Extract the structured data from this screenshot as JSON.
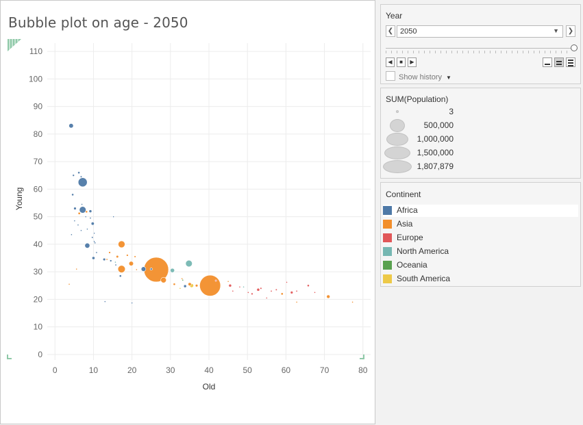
{
  "sheet": {
    "title": "Bubble plot on age - 2050"
  },
  "year_filter": {
    "title": "Year",
    "value": "2050",
    "show_history": "Show history",
    "prev_icon": "chevron-left-icon",
    "next_icon": "chevron-right-icon",
    "dropdown_icon": "caret-down-icon"
  },
  "size_legend": {
    "title": "SUM(Population)",
    "items": [
      {
        "label": "3",
        "value": 3
      },
      {
        "label": "500,000",
        "value": 500000
      },
      {
        "label": "1,000,000",
        "value": 1000000
      },
      {
        "label": "1,500,000",
        "value": 1500000
      },
      {
        "label": "1,807,879",
        "value": 1807879
      }
    ]
  },
  "color_legend": {
    "title": "Continent",
    "items": [
      {
        "label": "Africa",
        "color": "#4e79a7"
      },
      {
        "label": "Asia",
        "color": "#f28e2b"
      },
      {
        "label": "Europe",
        "color": "#e15759"
      },
      {
        "label": "North America",
        "color": "#76b7b2"
      },
      {
        "label": "Oceania",
        "color": "#59a14f"
      },
      {
        "label": "South America",
        "color": "#edc948"
      }
    ]
  },
  "chart_data": {
    "type": "scatter",
    "title": "Bubble plot on age - 2050",
    "xlabel": "Old",
    "ylabel": "Young",
    "xlim": [
      -2,
      82
    ],
    "ylim": [
      -2,
      113
    ],
    "xticks": [
      0,
      10,
      20,
      30,
      40,
      50,
      60,
      70,
      80
    ],
    "yticks": [
      0,
      10,
      20,
      30,
      40,
      50,
      60,
      70,
      80,
      90,
      100,
      110
    ],
    "grid": true,
    "series": [
      {
        "name": "Africa",
        "color": "#4e79a7",
        "points": [
          {
            "x": 4.2,
            "y": 83,
            "pop": 60000
          },
          {
            "x": 7.2,
            "y": 62.5,
            "pop": 240000
          },
          {
            "x": 4.8,
            "y": 65,
            "pop": 12000
          },
          {
            "x": 6.2,
            "y": 66,
            "pop": 14000
          },
          {
            "x": 6.8,
            "y": 64.5,
            "pop": 10000
          },
          {
            "x": 4.6,
            "y": 58,
            "pop": 14000
          },
          {
            "x": 7.2,
            "y": 52.5,
            "pop": 130000
          },
          {
            "x": 5.2,
            "y": 53,
            "pop": 20000
          },
          {
            "x": 9.2,
            "y": 52,
            "pop": 24000
          },
          {
            "x": 7.0,
            "y": 54.5,
            "pop": 5000
          },
          {
            "x": 5.1,
            "y": 48.5,
            "pop": 6000
          },
          {
            "x": 8.0,
            "y": 50,
            "pop": 4000
          },
          {
            "x": 9.2,
            "y": 49.5,
            "pop": 8000
          },
          {
            "x": 9.8,
            "y": 47.5,
            "pop": 28000
          },
          {
            "x": 6.0,
            "y": 47,
            "pop": 4000
          },
          {
            "x": 8.4,
            "y": 45.5,
            "pop": 5000
          },
          {
            "x": 6.8,
            "y": 45,
            "pop": 3000
          },
          {
            "x": 10.2,
            "y": 44,
            "pop": 4000
          },
          {
            "x": 9.7,
            "y": 42.5,
            "pop": 9000
          },
          {
            "x": 10.2,
            "y": 41,
            "pop": 7000
          },
          {
            "x": 8.4,
            "y": 39.5,
            "pop": 75000
          },
          {
            "x": 10.4,
            "y": 40.5,
            "pop": 8000
          },
          {
            "x": 10.8,
            "y": 37,
            "pop": 8000
          },
          {
            "x": 10.0,
            "y": 35,
            "pop": 25000
          },
          {
            "x": 12.8,
            "y": 34.5,
            "pop": 20000
          },
          {
            "x": 14.5,
            "y": 34,
            "pop": 12000
          },
          {
            "x": 15.8,
            "y": 32.5,
            "pop": 8000
          },
          {
            "x": 17.0,
            "y": 28.5,
            "pop": 14000
          },
          {
            "x": 23.0,
            "y": 31,
            "pop": 65000
          },
          {
            "x": 25.0,
            "y": 31,
            "pop": 14000
          },
          {
            "x": 33.8,
            "y": 24.8,
            "pop": 24000
          },
          {
            "x": 15.2,
            "y": 50,
            "pop": 2000
          },
          {
            "x": 4.3,
            "y": 43.5,
            "pop": 2000
          },
          {
            "x": 13.0,
            "y": 19.2,
            "pop": 1000
          },
          {
            "x": 20.0,
            "y": 18.7,
            "pop": 1000
          }
        ]
      },
      {
        "name": "Asia",
        "color": "#f28e2b",
        "points": [
          {
            "x": 26.3,
            "y": 30.8,
            "pop": 1807879
          },
          {
            "x": 40.3,
            "y": 25.0,
            "pop": 1300000
          },
          {
            "x": 17.3,
            "y": 40.0,
            "pop": 140000
          },
          {
            "x": 17.3,
            "y": 31.0,
            "pop": 160000
          },
          {
            "x": 19.8,
            "y": 33.0,
            "pop": 60000
          },
          {
            "x": 28.2,
            "y": 27.0,
            "pop": 90000
          },
          {
            "x": 6.3,
            "y": 51.2,
            "pop": 16000
          },
          {
            "x": 8.2,
            "y": 51.8,
            "pop": 14000
          },
          {
            "x": 14.2,
            "y": 37,
            "pop": 12000
          },
          {
            "x": 16.2,
            "y": 35.5,
            "pop": 18000
          },
          {
            "x": 18.8,
            "y": 36,
            "pop": 12000
          },
          {
            "x": 20.8,
            "y": 35.5,
            "pop": 10000
          },
          {
            "x": 13.5,
            "y": 34.5,
            "pop": 8000
          },
          {
            "x": 36.8,
            "y": 25,
            "pop": 20000
          },
          {
            "x": 35.0,
            "y": 25.5,
            "pop": 30000
          },
          {
            "x": 31.0,
            "y": 25.5,
            "pop": 15000
          },
          {
            "x": 71.0,
            "y": 21.0,
            "pop": 35000
          },
          {
            "x": 59.0,
            "y": 22.0,
            "pop": 15000
          },
          {
            "x": 62.8,
            "y": 19.0,
            "pop": 6000
          },
          {
            "x": 77.3,
            "y": 19.0,
            "pop": 3000
          },
          {
            "x": 3.7,
            "y": 25.5,
            "pop": 2000
          },
          {
            "x": 5.6,
            "y": 31,
            "pop": 2000
          },
          {
            "x": 21.2,
            "y": 30.8,
            "pop": 4000
          },
          {
            "x": 45.0,
            "y": 26.5,
            "pop": 5000
          },
          {
            "x": 33.0,
            "y": 27.5,
            "pop": 3000
          }
        ]
      },
      {
        "name": "Europe",
        "color": "#e15759",
        "points": [
          {
            "x": 41.8,
            "y": 26.8,
            "pop": 6000
          },
          {
            "x": 45.5,
            "y": 25.0,
            "pop": 24000
          },
          {
            "x": 48.0,
            "y": 24.5,
            "pop": 4000
          },
          {
            "x": 50.2,
            "y": 22.5,
            "pop": 8000
          },
          {
            "x": 51.2,
            "y": 22.0,
            "pop": 12000
          },
          {
            "x": 52.8,
            "y": 23.5,
            "pop": 24000
          },
          {
            "x": 53.5,
            "y": 24.0,
            "pop": 10000
          },
          {
            "x": 56.2,
            "y": 23.0,
            "pop": 8000
          },
          {
            "x": 57.5,
            "y": 23.5,
            "pop": 9000
          },
          {
            "x": 60.2,
            "y": 26.2,
            "pop": 4000
          },
          {
            "x": 61.5,
            "y": 22.5,
            "pop": 20000
          },
          {
            "x": 62.8,
            "y": 23.0,
            "pop": 8000
          },
          {
            "x": 65.8,
            "y": 25.0,
            "pop": 14000
          },
          {
            "x": 67.5,
            "y": 22.5,
            "pop": 3000
          },
          {
            "x": 46.2,
            "y": 23.0,
            "pop": 3000
          },
          {
            "x": 55.0,
            "y": 20.5,
            "pop": 2000
          }
        ]
      },
      {
        "name": "North America",
        "color": "#76b7b2",
        "points": [
          {
            "x": 34.8,
            "y": 33.0,
            "pop": 130000
          },
          {
            "x": 30.5,
            "y": 30.5,
            "pop": 55000
          },
          {
            "x": 15.7,
            "y": 33.5,
            "pop": 4000
          },
          {
            "x": 49.0,
            "y": 24.5,
            "pop": 4000
          }
        ]
      },
      {
        "name": "Oceania",
        "color": "#59a14f",
        "points": [
          {
            "x": 33.2,
            "y": 27.0,
            "pop": 2000
          }
        ]
      },
      {
        "name": "South America",
        "color": "#edc948",
        "points": [
          {
            "x": 35.5,
            "y": 25.0,
            "pop": 45000
          },
          {
            "x": 32.5,
            "y": 24.0,
            "pop": 4000
          }
        ]
      }
    ]
  }
}
